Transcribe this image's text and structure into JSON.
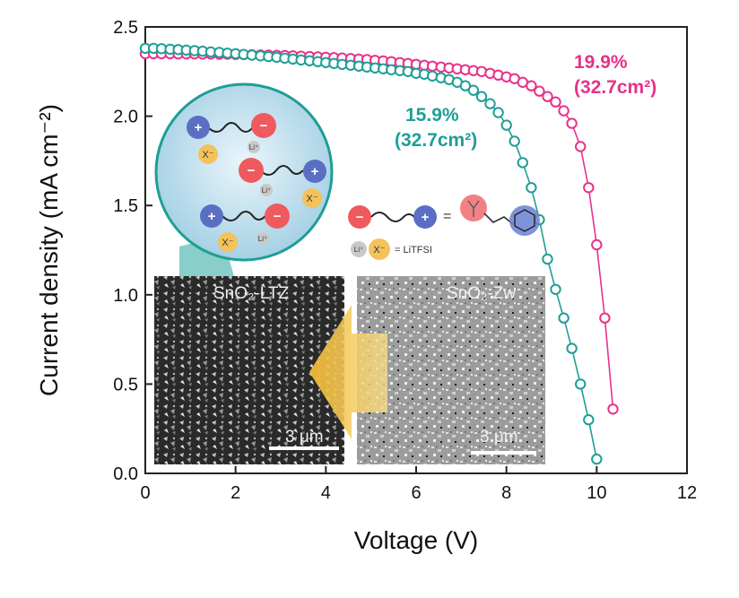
{
  "chart_data": {
    "type": "scatter",
    "xlabel": "Voltage (V)",
    "ylabel": "Current density (mA cm⁻²)",
    "xlim": [
      0,
      12
    ],
    "ylim": [
      0,
      2.5
    ],
    "x_ticks": [
      "0",
      "2",
      "4",
      "6",
      "8",
      "10",
      "12"
    ],
    "y_ticks": [
      "0.0",
      "0.5",
      "1.0",
      "1.5",
      "2.0",
      "2.5"
    ],
    "series": [
      {
        "color": "#e8318a",
        "points": [
          [
            0.0,
            2.35
          ],
          [
            0.18,
            2.35
          ],
          [
            0.36,
            2.35
          ],
          [
            0.55,
            2.35
          ],
          [
            0.73,
            2.349
          ],
          [
            0.91,
            2.349
          ],
          [
            1.09,
            2.349
          ],
          [
            1.27,
            2.348
          ],
          [
            1.45,
            2.348
          ],
          [
            1.64,
            2.347
          ],
          [
            1.82,
            2.347
          ],
          [
            2.0,
            2.346
          ],
          [
            2.18,
            2.345
          ],
          [
            2.36,
            2.344
          ],
          [
            2.55,
            2.343
          ],
          [
            2.73,
            2.342
          ],
          [
            2.91,
            2.341
          ],
          [
            3.09,
            2.34
          ],
          [
            3.27,
            2.338
          ],
          [
            3.45,
            2.336
          ],
          [
            3.64,
            2.334
          ],
          [
            3.82,
            2.332
          ],
          [
            4.0,
            2.33
          ],
          [
            4.18,
            2.328
          ],
          [
            4.36,
            2.326
          ],
          [
            4.55,
            2.323
          ],
          [
            4.73,
            2.32
          ],
          [
            4.91,
            2.317
          ],
          [
            5.09,
            2.313
          ],
          [
            5.27,
            2.309
          ],
          [
            5.45,
            2.305
          ],
          [
            5.64,
            2.3
          ],
          [
            5.82,
            2.295
          ],
          [
            6.0,
            2.29
          ],
          [
            6.18,
            2.285
          ],
          [
            6.36,
            2.28
          ],
          [
            6.55,
            2.275
          ],
          [
            6.73,
            2.27
          ],
          [
            6.91,
            2.265
          ],
          [
            7.09,
            2.26
          ],
          [
            7.27,
            2.255
          ],
          [
            7.45,
            2.25
          ],
          [
            7.64,
            2.24
          ],
          [
            7.82,
            2.23
          ],
          [
            8.0,
            2.22
          ],
          [
            8.18,
            2.21
          ],
          [
            8.36,
            2.19
          ],
          [
            8.55,
            2.17
          ],
          [
            8.73,
            2.14
          ],
          [
            8.91,
            2.11
          ],
          [
            9.09,
            2.08
          ],
          [
            9.27,
            2.03
          ],
          [
            9.45,
            1.96
          ],
          [
            9.64,
            1.83
          ],
          [
            9.82,
            1.6
          ],
          [
            10.0,
            1.28
          ],
          [
            10.18,
            0.87
          ],
          [
            10.36,
            0.36
          ]
        ]
      },
      {
        "color": "#1f9e96",
        "points": [
          [
            0.0,
            2.38
          ],
          [
            0.18,
            2.38
          ],
          [
            0.36,
            2.378
          ],
          [
            0.55,
            2.375
          ],
          [
            0.73,
            2.373
          ],
          [
            0.91,
            2.37
          ],
          [
            1.09,
            2.367
          ],
          [
            1.27,
            2.364
          ],
          [
            1.45,
            2.36
          ],
          [
            1.64,
            2.357
          ],
          [
            1.82,
            2.353
          ],
          [
            2.0,
            2.35
          ],
          [
            2.18,
            2.346
          ],
          [
            2.36,
            2.342
          ],
          [
            2.55,
            2.338
          ],
          [
            2.73,
            2.334
          ],
          [
            2.91,
            2.33
          ],
          [
            3.09,
            2.325
          ],
          [
            3.27,
            2.32
          ],
          [
            3.45,
            2.315
          ],
          [
            3.64,
            2.31
          ],
          [
            3.82,
            2.305
          ],
          [
            4.0,
            2.3
          ],
          [
            4.18,
            2.295
          ],
          [
            4.36,
            2.29
          ],
          [
            4.55,
            2.285
          ],
          [
            4.73,
            2.28
          ],
          [
            4.91,
            2.275
          ],
          [
            5.09,
            2.27
          ],
          [
            5.27,
            2.265
          ],
          [
            5.45,
            2.26
          ],
          [
            5.64,
            2.255
          ],
          [
            5.82,
            2.25
          ],
          [
            6.0,
            2.24
          ],
          [
            6.18,
            2.235
          ],
          [
            6.36,
            2.225
          ],
          [
            6.55,
            2.215
          ],
          [
            6.73,
            2.205
          ],
          [
            6.91,
            2.19
          ],
          [
            7.09,
            2.17
          ],
          [
            7.27,
            2.145
          ],
          [
            7.45,
            2.11
          ],
          [
            7.64,
            2.07
          ],
          [
            7.82,
            2.02
          ],
          [
            8.0,
            1.95
          ],
          [
            8.18,
            1.86
          ],
          [
            8.36,
            1.74
          ],
          [
            8.55,
            1.6
          ],
          [
            8.73,
            1.42
          ],
          [
            8.91,
            1.2
          ],
          [
            9.09,
            1.03
          ],
          [
            9.27,
            0.87
          ],
          [
            9.45,
            0.7
          ],
          [
            9.64,
            0.5
          ],
          [
            9.82,
            0.3
          ],
          [
            10.0,
            0.08
          ]
        ]
      }
    ],
    "annotations": [
      {
        "line1": "19.9%",
        "line2": "(32.7cm²)",
        "color": "#e8318a"
      },
      {
        "line1": "15.9%",
        "line2": "(32.7cm²)",
        "color": "#1f9e96"
      }
    ]
  },
  "inset": {
    "sem_left_label": "SnO₂-LTZ",
    "sem_right_label": "SnO₂-Zw",
    "scale_left": "3 μm",
    "scale_right": "3 μm",
    "ion_plus": "+",
    "ion_minus": "−",
    "ion_x": "X⁻",
    "ion_li": "Li⁺",
    "legend_equals": "=",
    "legend_litfsi": "= LiTFSI",
    "colors": {
      "plus": "#5a6fc4",
      "minus": "#ef5a5f",
      "x": "#f3c35b",
      "li": "#c9c9c9",
      "circle": "#cfe6f2"
    }
  }
}
